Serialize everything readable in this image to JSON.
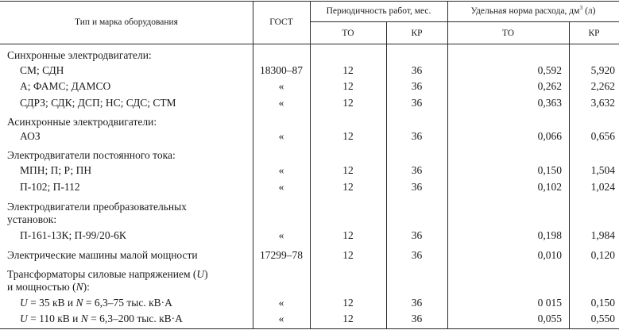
{
  "header": {
    "col_type": "Тип и марка оборудования",
    "col_gost": "ГОСТ",
    "col_period": "Периодичность работ, мес.",
    "col_norm_prefix": "Удельная норма расхода, дм",
    "col_norm_sup": "3",
    "col_norm_suffix": " (л)",
    "sub_to": "ТО",
    "sub_kr": "КР"
  },
  "rows": [
    {
      "label": "Синхронные электродвигатели:"
    },
    {
      "label": "СМ; СДН",
      "gost": "18300–87",
      "to": "12",
      "kr": "36",
      "norm_to": "0,592",
      "norm_kr": "5,920"
    },
    {
      "label": "А; ФАМС; ДАМСО",
      "gost": "«",
      "to": "12",
      "kr": "36",
      "norm_to": "0,262",
      "norm_kr": "2,262"
    },
    {
      "label": "СДРЗ; СДК; ДСП; НС; СДС; СТМ",
      "gost": "«",
      "to": "12",
      "kr": "36",
      "norm_to": "0,363",
      "norm_kr": "3,632"
    },
    {
      "label": "Асинхронные электродвигатели:"
    },
    {
      "label": "АОЗ",
      "gost": "«",
      "to": "12",
      "kr": "36",
      "norm_to": "0,066",
      "norm_kr": "0,656"
    },
    {
      "label": "Электродвигатели постоянного тока:"
    },
    {
      "label": "МПН; П; Р; ПН",
      "gost": "«",
      "to": "12",
      "kr": "36",
      "norm_to": "0,150",
      "norm_kr": "1,504"
    },
    {
      "label": "П-102; П-112",
      "gost": "«",
      "to": "12",
      "kr": "36",
      "norm_to": "0,102",
      "norm_kr": "1,024"
    },
    {
      "label": "Электродвигатели преобразовательных"
    },
    {
      "label": "установок:"
    },
    {
      "label": "П-161-13К; П-99/20-6К",
      "gost": "«",
      "to": "12",
      "kr": "36",
      "norm_to": "0,198",
      "norm_kr": "1,984"
    },
    {
      "label": "Электрические машины малой мощности",
      "gost": "17299–78",
      "to": "12",
      "kr": "36",
      "norm_to": "0,010",
      "norm_kr": "0,120"
    },
    {
      "label_parts": [
        "Трансформаторы силовые напряжением (",
        "U",
        ")"
      ]
    },
    {
      "label_parts": [
        "и мощностью (",
        "N",
        "):"
      ]
    },
    {
      "label_parts": [
        "",
        "U",
        " = 35 кВ и ",
        "N",
        " = 6,3–75 тыс. кВ·А"
      ],
      "gost": "«",
      "to": "12",
      "kr": "36",
      "norm_to": "0 015",
      "norm_kr": "0,150"
    },
    {
      "label_parts": [
        "",
        "U",
        " = 110 кВ и ",
        "N",
        " = 6,3–200 тыс. кВ·А"
      ],
      "gost": "«",
      "to": "12",
      "kr": "36",
      "norm_to": "0,055",
      "norm_kr": "0,550"
    }
  ]
}
